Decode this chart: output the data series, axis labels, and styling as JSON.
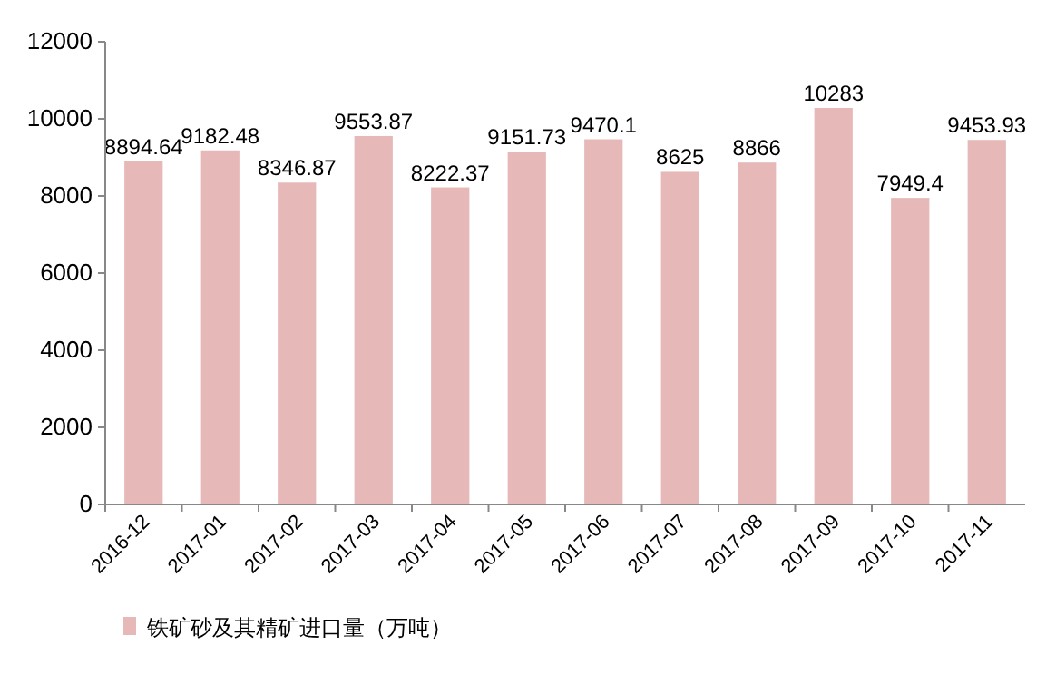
{
  "chart_data": {
    "type": "bar",
    "categories": [
      "2016-12",
      "2017-01",
      "2017-02",
      "2017-03",
      "2017-04",
      "2017-05",
      "2017-06",
      "2017-07",
      "2017-08",
      "2017-09",
      "2017-10",
      "2017-11"
    ],
    "series": [
      {
        "name": "铁矿砂及其精矿进口量（万吨）",
        "color": "#e6b9b8",
        "values": [
          8894.64,
          9182.48,
          8346.87,
          9553.87,
          8222.37,
          9151.73,
          9470.1,
          8625,
          8866,
          10283,
          7949.4,
          9453.93
        ]
      }
    ],
    "ylim": [
      0,
      12000
    ],
    "yticks": [
      0,
      2000,
      4000,
      6000,
      8000,
      10000,
      12000
    ],
    "data_labels": true,
    "legend": "bottom left",
    "grid": false
  }
}
